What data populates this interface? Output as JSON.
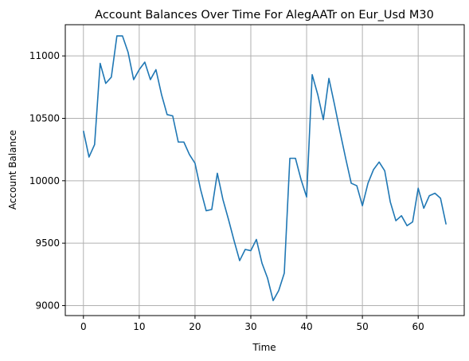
{
  "chart_data": {
    "type": "line",
    "title": "Account Balances Over Time For AlegAATr on Eur_Usd M30",
    "xlabel": "Time",
    "ylabel": "Account Balance",
    "xlim": [
      -3.25,
      68.25
    ],
    "ylim": [
      8920,
      11250
    ],
    "xticks": [
      0,
      10,
      20,
      30,
      40,
      50,
      60
    ],
    "yticks": [
      9000,
      9500,
      10000,
      10500,
      11000
    ],
    "grid": true,
    "series": [
      {
        "color": "#1f77b4",
        "x": [
          0,
          1,
          2,
          3,
          4,
          5,
          6,
          7,
          8,
          9,
          10,
          11,
          12,
          13,
          14,
          15,
          16,
          17,
          18,
          19,
          20,
          21,
          22,
          23,
          24,
          25,
          26,
          27,
          28,
          29,
          30,
          31,
          32,
          33,
          34,
          35,
          36,
          37,
          38,
          39,
          40,
          41,
          42,
          43,
          44,
          45,
          46,
          47,
          48,
          49,
          50,
          51,
          52,
          53,
          54,
          55,
          56,
          57,
          58,
          59,
          60,
          61,
          62,
          63,
          64,
          65
        ],
        "values": [
          10400,
          10190,
          10290,
          10940,
          10780,
          10830,
          11160,
          11160,
          11030,
          10810,
          10890,
          10950,
          10810,
          10890,
          10690,
          10530,
          10520,
          10310,
          10310,
          10210,
          10140,
          9930,
          9760,
          9770,
          10060,
          9850,
          9690,
          9520,
          9360,
          9450,
          9440,
          9530,
          9340,
          9220,
          9040,
          9120,
          9260,
          10180,
          10180,
          10010,
          9870,
          10850,
          10690,
          10490,
          10820,
          10610,
          10390,
          10180,
          9980,
          9960,
          9800,
          9980,
          10090,
          10150,
          10080,
          9830,
          9680,
          9720,
          9640,
          9670,
          9940,
          9780,
          9880,
          9900,
          9860,
          9650
        ]
      }
    ]
  }
}
